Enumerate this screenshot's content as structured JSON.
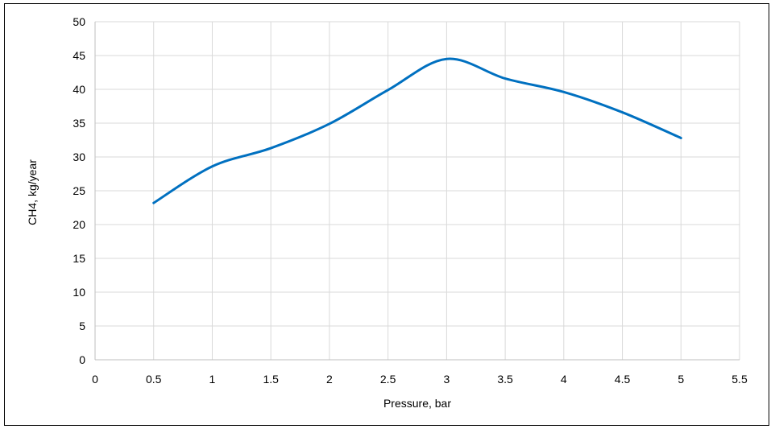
{
  "chart_data": {
    "type": "line",
    "title": "",
    "xlabel": "Pressure, bar",
    "ylabel": "CH4, kg/year",
    "xlim": [
      0,
      5.5
    ],
    "ylim": [
      0,
      50
    ],
    "x_ticks": [
      "0",
      "0.5",
      "1",
      "1.5",
      "2",
      "2.5",
      "3",
      "3.5",
      "4",
      "4.5",
      "5",
      "5.5"
    ],
    "y_ticks": [
      "0",
      "5",
      "10",
      "15",
      "20",
      "25",
      "30",
      "35",
      "40",
      "45",
      "50"
    ],
    "grid": true,
    "smooth": true,
    "legend": "none",
    "series": [
      {
        "x": [
          0.5,
          1,
          1.5,
          2,
          2.5,
          3,
          3.5,
          4,
          4.5,
          5
        ],
        "y": [
          23.2,
          28.6,
          31.3,
          34.9,
          39.9,
          44.5,
          41.6,
          39.6,
          36.6,
          32.8
        ],
        "color": "#0070c0"
      }
    ]
  }
}
